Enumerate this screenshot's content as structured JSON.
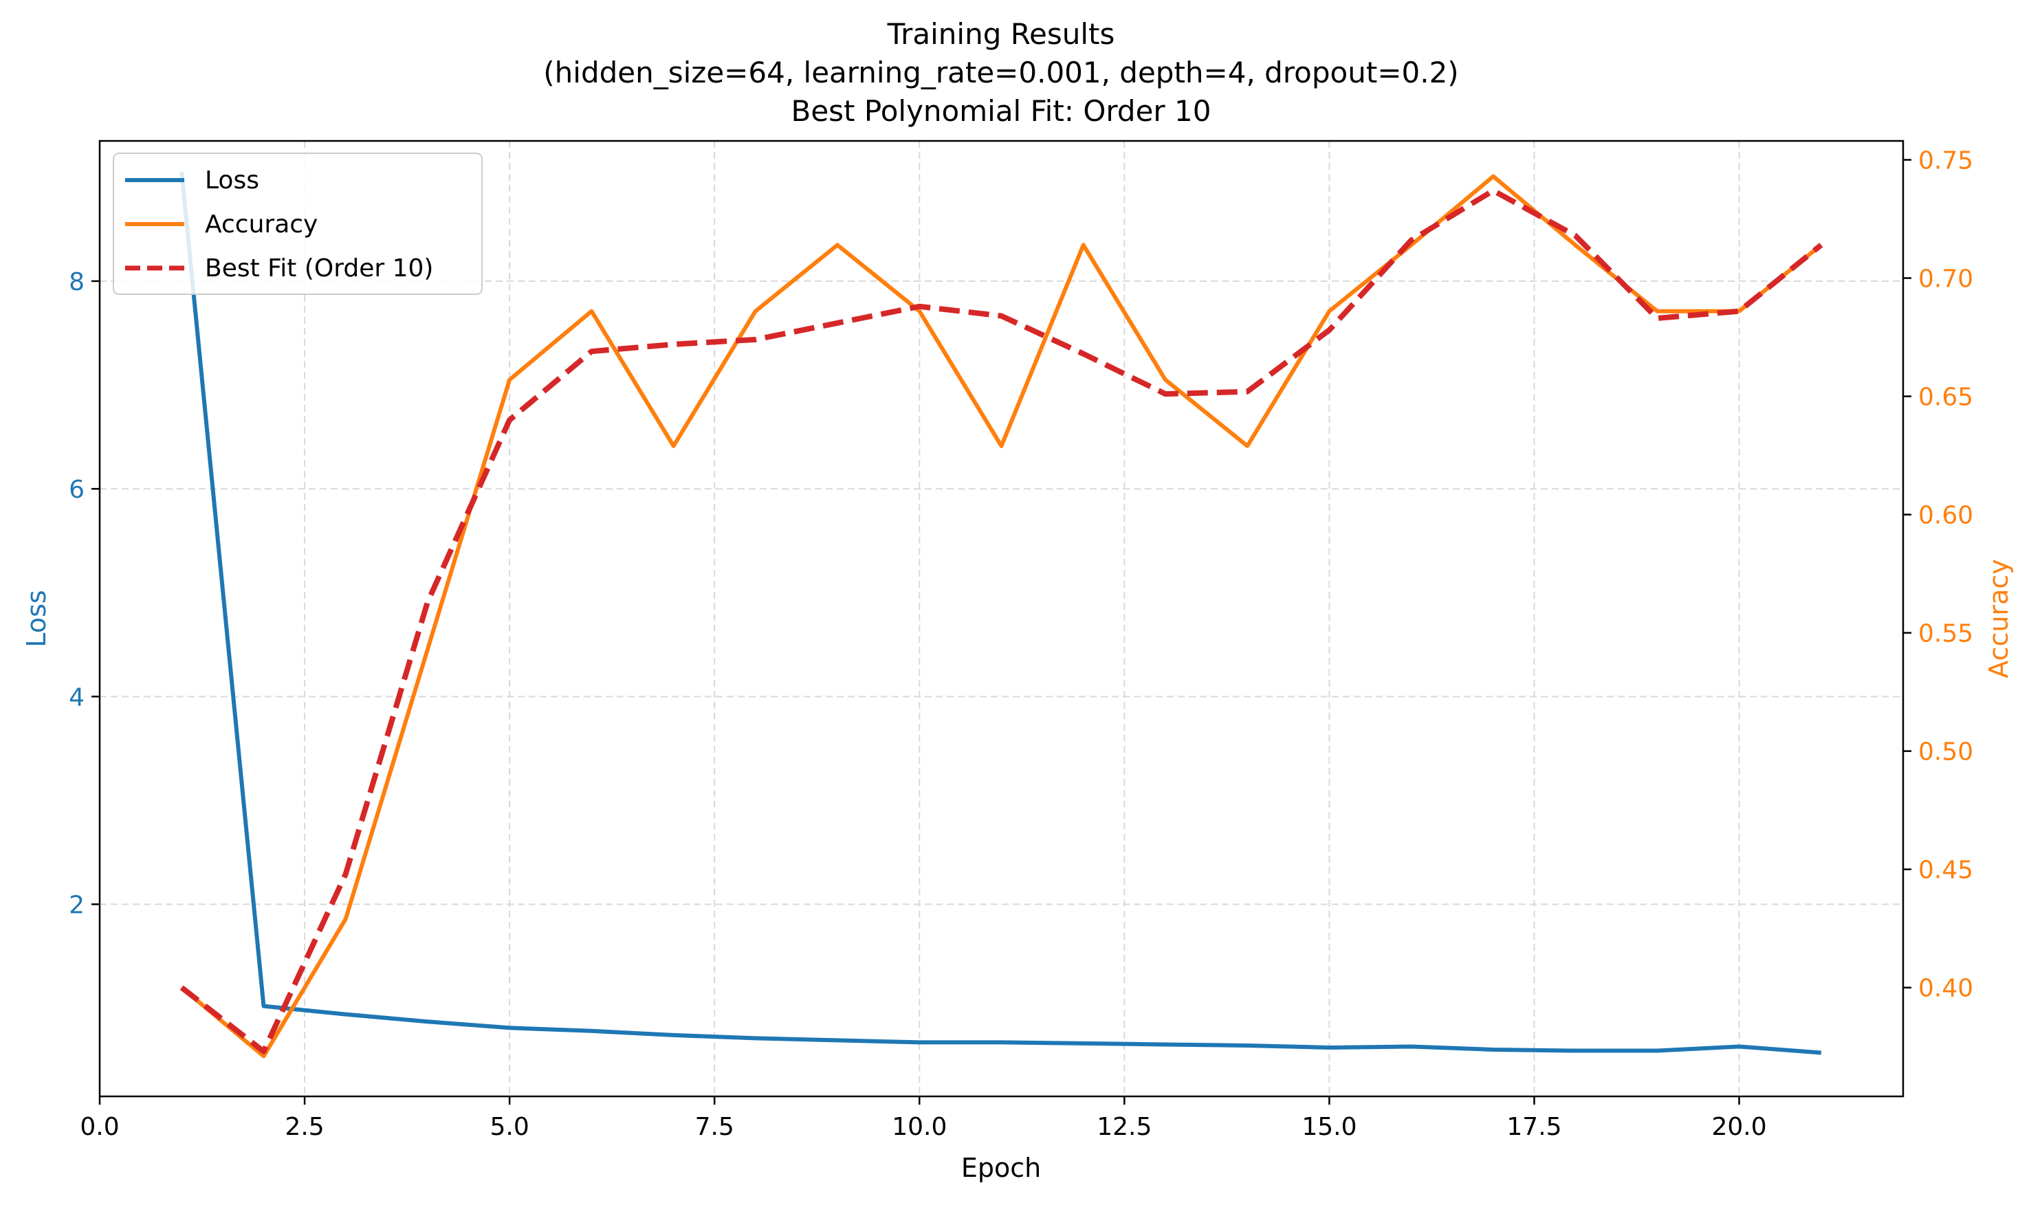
{
  "chart_data": {
    "type": "line",
    "title": "Training Results",
    "subtitle_lines": [
      "(hidden_size=64, learning_rate=0.001, depth=4, dropout=0.2)",
      "Best Polynomial Fit: Order 10"
    ],
    "xlabel": "Epoch",
    "ylabel_left": "Loss",
    "ylabel_right": "Accuracy",
    "xlim": [
      0,
      22
    ],
    "ylim_left": [
      0.15,
      9.35
    ],
    "ylim_right": [
      0.354,
      0.758
    ],
    "x_ticks": [
      "0.0",
      "2.5",
      "5.0",
      "7.5",
      "10.0",
      "12.5",
      "15.0",
      "17.5",
      "20.0"
    ],
    "y_left_ticks": [
      "2",
      "4",
      "6",
      "8"
    ],
    "y_right_ticks": [
      "0.40",
      "0.45",
      "0.50",
      "0.55",
      "0.60",
      "0.65",
      "0.70",
      "0.75"
    ],
    "grid": true,
    "legend_position": "top-left",
    "x": [
      1,
      2,
      3,
      4,
      5,
      6,
      7,
      8,
      9,
      10,
      11,
      12,
      13,
      14,
      15,
      16,
      17,
      18,
      19,
      20,
      21
    ],
    "series": [
      {
        "name": "Loss",
        "axis": "left",
        "color": "#1f77b4",
        "style": "solid",
        "values": [
          9.05,
          1.02,
          0.94,
          0.87,
          0.81,
          0.78,
          0.74,
          0.71,
          0.69,
          0.67,
          0.67,
          0.66,
          0.65,
          0.64,
          0.62,
          0.63,
          0.6,
          0.59,
          0.59,
          0.63,
          0.57
        ]
      },
      {
        "name": "Accuracy",
        "axis": "right",
        "color": "#ff7f0e",
        "style": "solid",
        "values": [
          0.4,
          0.371,
          0.429,
          0.543,
          0.657,
          0.686,
          0.629,
          0.686,
          0.714,
          0.686,
          0.629,
          0.714,
          0.657,
          0.629,
          0.686,
          0.714,
          0.743,
          0.714,
          0.686,
          0.686,
          0.714
        ]
      },
      {
        "name": "Best Fit (Order 10)",
        "axis": "right",
        "color": "#d62728",
        "style": "dashed",
        "values": [
          0.4,
          0.373,
          0.448,
          0.563,
          0.64,
          0.669,
          0.672,
          0.674,
          0.681,
          0.688,
          0.684,
          0.668,
          0.651,
          0.652,
          0.678,
          0.716,
          0.737,
          0.718,
          0.683,
          0.686,
          0.714
        ]
      }
    ]
  },
  "colors": {
    "loss_axis": "#1f77b4",
    "accuracy_axis": "#ff7f0e",
    "grid": "#d9d9d9"
  }
}
